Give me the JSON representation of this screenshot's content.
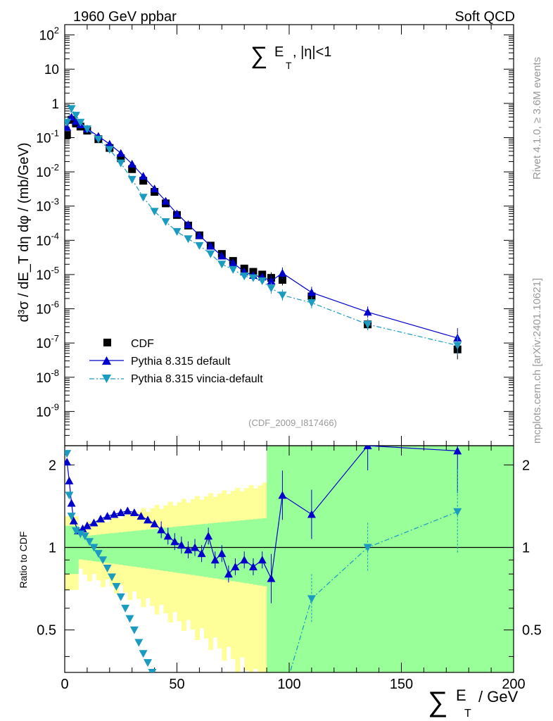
{
  "header": {
    "left": "1960 GeV ppbar",
    "right": "Soft QCD",
    "side_top": "Rivet 4.1.0, ≥ 3.6M events",
    "side_bottom": "mcplots.cern.ch [arXiv:2401.10621]",
    "analysis": "(CDF_2009_I817466)"
  },
  "colors": {
    "data": "#000000",
    "default": "#0000cc",
    "vincia": "#1a9bbf",
    "band_yellow": "#ffff99",
    "band_green": "#99ff99",
    "ref_line": "#000000"
  },
  "chart_data": [
    {
      "type": "scatter",
      "name": "main-panel",
      "title_symbol": "∑",
      "title_sub": "T",
      "title_main": "E",
      "title_suffix": ", |η|<1",
      "ylabel": "d³σ / dE_T dη dφ / (mb/GeV)",
      "yscale": "log",
      "xlim": [
        0,
        200
      ],
      "ylim": [
        1e-10,
        200
      ],
      "ytick_labels": [
        "10^2",
        "10",
        "1",
        "10^-1",
        "10^-2",
        "10^-3",
        "10^-4",
        "10^-5",
        "10^-6",
        "10^-7",
        "10^-8",
        "10^-9"
      ],
      "legend_position": "lower-left",
      "series": [
        {
          "name": "CDF",
          "marker": "square",
          "style": "none",
          "x": [
            1,
            3,
            5,
            7,
            10,
            15,
            20,
            25,
            30,
            35,
            40,
            45,
            50,
            55,
            60,
            65,
            70,
            75,
            80,
            84,
            88,
            92,
            97,
            110,
            135,
            175
          ],
          "y": [
            0.12,
            0.33,
            0.26,
            0.21,
            0.16,
            0.09,
            0.05,
            0.025,
            0.012,
            0.0055,
            0.0026,
            0.0012,
            0.00055,
            0.00027,
            0.00014,
            7e-05,
            4e-05,
            2.5e-05,
            1.5e-05,
            1.2e-05,
            1e-05,
            8e-06,
            7e-06,
            2.3e-06,
            3.5e-07,
            6.5e-08
          ]
        },
        {
          "name": "Pythia 8.315 default",
          "marker": "triangle-up",
          "style": "solid",
          "x": [
            1,
            3,
            5,
            7,
            10,
            15,
            20,
            25,
            30,
            35,
            40,
            45,
            50,
            55,
            60,
            65,
            70,
            75,
            80,
            84,
            88,
            92,
            97,
            110,
            135,
            175
          ],
          "y": [
            0.2,
            0.4,
            0.3,
            0.24,
            0.18,
            0.11,
            0.065,
            0.035,
            0.017,
            0.0075,
            0.0032,
            0.0014,
            0.0006,
            0.00029,
            0.00014,
            6.8e-05,
            3.5e-05,
            2.2e-05,
            1.2e-05,
            9.5e-06,
            8.5e-06,
            6.5e-06,
            1.1e-05,
            3e-06,
            8e-07,
            1.4e-07
          ]
        },
        {
          "name": "Pythia 8.315 vincia-default",
          "marker": "triangle-down",
          "style": "dashdot",
          "x": [
            1,
            3,
            5,
            7,
            10,
            15,
            20,
            25,
            30,
            35,
            40,
            45,
            50,
            55,
            60,
            65,
            70,
            75,
            80,
            84,
            88,
            92,
            97,
            110,
            135,
            175
          ],
          "y": [
            0.28,
            0.7,
            0.45,
            0.28,
            0.18,
            0.09,
            0.045,
            0.018,
            0.006,
            0.0018,
            0.0007,
            0.00035,
            0.00018,
            0.00011,
            7e-05,
            4e-05,
            2e-05,
            1.4e-05,
            9e-06,
            8e-06,
            6.5e-06,
            4e-06,
            2.5e-06,
            1.5e-06,
            3.5e-07,
            8.5e-08
          ]
        }
      ]
    },
    {
      "type": "line",
      "name": "ratio-panel",
      "xlabel": "∑ E_T / GeV",
      "ylabel": "Ratio to CDF",
      "xlim": [
        0,
        200
      ],
      "ylim": [
        0.35,
        2.35
      ],
      "xtick_labels": [
        "0",
        "50",
        "100",
        "150",
        "200"
      ],
      "ytick_labels": [
        "0.5",
        "1",
        "2"
      ],
      "series": [
        {
          "name": "Pythia 8.315 default",
          "x": [
            1,
            2,
            3,
            4,
            6,
            8,
            10,
            13,
            16,
            19,
            22,
            25,
            28,
            31,
            34,
            37,
            40,
            43,
            46,
            49,
            52,
            55,
            58,
            61,
            64,
            67,
            70,
            73,
            76,
            80,
            84,
            88,
            92,
            97,
            110,
            135,
            175
          ],
          "y": [
            2.05,
            1.75,
            1.45,
            1.25,
            1.15,
            1.17,
            1.2,
            1.23,
            1.27,
            1.3,
            1.32,
            1.34,
            1.36,
            1.34,
            1.3,
            1.26,
            1.22,
            1.16,
            1.1,
            1.05,
            1.02,
            0.98,
            1.0,
            0.95,
            1.1,
            0.9,
            0.95,
            0.8,
            0.85,
            0.9,
            0.85,
            0.9,
            0.77,
            1.55,
            1.32,
            2.35,
            2.25
          ]
        },
        {
          "name": "Pythia 8.315 vincia-default",
          "x": [
            1,
            2,
            3,
            5,
            7,
            9,
            11,
            13,
            15,
            17,
            19,
            21,
            23,
            25,
            27,
            29,
            31,
            33,
            35,
            37,
            39,
            110,
            135,
            175
          ],
          "y": [
            2.2,
            1.55,
            1.3,
            1.15,
            1.12,
            1.1,
            1.05,
            1.0,
            0.95,
            0.9,
            0.84,
            0.78,
            0.72,
            0.66,
            0.6,
            0.55,
            0.5,
            0.45,
            0.41,
            0.38,
            0.35,
            0.65,
            1.0,
            1.35
          ]
        }
      ]
    }
  ]
}
